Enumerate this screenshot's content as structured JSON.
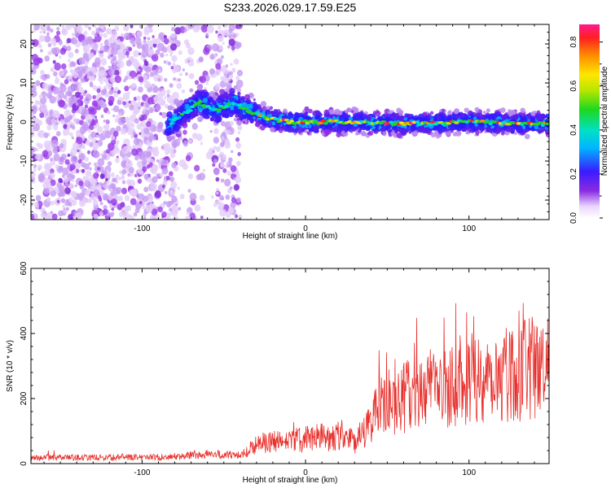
{
  "title": "S233.2026.029.17.59.E25",
  "chart_data": [
    {
      "type": "heatmap",
      "xlabel": "Height of straight line (km)",
      "ylabel": "Frequency (Hz)",
      "xlim": [
        -168,
        149
      ],
      "ylim": [
        -25,
        25
      ],
      "xticks": [
        -100,
        0,
        100
      ],
      "yticks": [
        -20,
        -10,
        0,
        10,
        20
      ],
      "colorbar": {
        "label": "Normalized spectral amplitude",
        "range": [
          0,
          0.88
        ],
        "ticks": [
          "0.0",
          "0.2",
          "0.4",
          "0.6",
          "0.8"
        ]
      },
      "ridge": {
        "points": [
          {
            "x": -85,
            "y": -1
          },
          {
            "x": -75,
            "y": 2
          },
          {
            "x": -65,
            "y": 5
          },
          {
            "x": -55,
            "y": 3
          },
          {
            "x": -45,
            "y": 5
          },
          {
            "x": -35,
            "y": 3
          },
          {
            "x": -25,
            "y": 1
          },
          {
            "x": -10,
            "y": 0
          },
          {
            "x": 20,
            "y": 0
          },
          {
            "x": 60,
            "y": -0.5
          },
          {
            "x": 100,
            "y": 0
          },
          {
            "x": 149,
            "y": -0.5
          }
        ]
      }
    },
    {
      "type": "line",
      "xlabel": "Height of straight line (km)",
      "ylabel": "SNR (10 * v/v)",
      "xlim": [
        -168,
        149
      ],
      "ylim": [
        0,
        600
      ],
      "xticks": [
        -100,
        0,
        100
      ],
      "yticks": [
        0,
        200,
        400,
        600
      ],
      "series": [
        {
          "name": "SNR",
          "color": "#e8302c",
          "trend": [
            {
              "x": -168,
              "y": 18
            },
            {
              "x": -80,
              "y": 20
            },
            {
              "x": -60,
              "y": 30
            },
            {
              "x": -40,
              "y": 25
            },
            {
              "x": -30,
              "y": 60
            },
            {
              "x": 0,
              "y": 75
            },
            {
              "x": 25,
              "y": 90
            },
            {
              "x": 30,
              "y": 60
            },
            {
              "x": 45,
              "y": 170
            },
            {
              "x": 70,
              "y": 220
            },
            {
              "x": 100,
              "y": 260
            },
            {
              "x": 149,
              "y": 300
            }
          ]
        }
      ]
    }
  ]
}
